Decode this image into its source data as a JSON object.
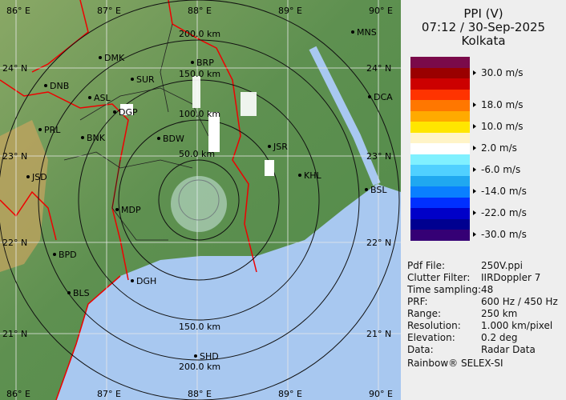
{
  "header": {
    "product": "PPI (V)",
    "datetime": "07:12 / 30-Sep-2025",
    "site": "Kolkata"
  },
  "legend": {
    "colors": [
      "#7a0a4a",
      "#9a0000",
      "#cc0000",
      "#ff3300",
      "#ff7700",
      "#ffaa00",
      "#ffe600",
      "#fff4c8",
      "#ffffff",
      "#80f0ff",
      "#50d0ff",
      "#20a8f0",
      "#0a80ff",
      "#0030ff",
      "#0000c8",
      "#000090",
      "#350075"
    ],
    "ticks": [
      {
        "label": "30.0 m/s",
        "index": 1
      },
      {
        "label": "18.0 m/s",
        "index": 4
      },
      {
        "label": "10.0 m/s",
        "index": 6
      },
      {
        "label": "2.0 m/s",
        "index": 8
      },
      {
        "label": "-6.0 m/s",
        "index": 10
      },
      {
        "label": "-14.0 m/s",
        "index": 12
      },
      {
        "label": "-22.0 m/s",
        "index": 14
      },
      {
        "label": "-30.0 m/s",
        "index": 16
      }
    ]
  },
  "info": [
    {
      "key": "Pdf File:",
      "value": "250V.ppi"
    },
    {
      "key": "Clutter Filter:",
      "value": "IIRDoppler 7"
    },
    {
      "key": "Time sampling:",
      "value": "48"
    },
    {
      "key": "PRF:",
      "value": "600 Hz / 450 Hz"
    },
    {
      "key": "Range:",
      "value": "250 km"
    },
    {
      "key": "Resolution:",
      "value": "1.000 km/pixel"
    },
    {
      "key": "Elevation:",
      "value": "0.2 deg"
    },
    {
      "key": "Data:",
      "value": "Radar Data"
    }
  ],
  "credit": "Rainbow® SELEX-SI",
  "map": {
    "lon_labels": [
      "86° E",
      "87° E",
      "88° E",
      "89° E",
      "90° E"
    ],
    "lat_labels": [
      "24° N",
      "23° N",
      "22° N",
      "21° N"
    ],
    "range_rings_km": [
      50,
      100,
      150,
      200,
      250
    ],
    "ring_labels": [
      "50.0 km",
      "100.0 km",
      "150.0 km",
      "200.0 km",
      "150.0 km",
      "200.0 km"
    ],
    "cities": [
      "MNS",
      "DMK",
      "BRP",
      "DNB",
      "SUR",
      "ASL",
      "DGP",
      "DCA",
      "PRL",
      "BNK",
      "BDW",
      "JSR",
      "KHL",
      "JSD",
      "BSL",
      "MDP",
      "BPD",
      "DGH",
      "BLS",
      "SHD"
    ]
  }
}
